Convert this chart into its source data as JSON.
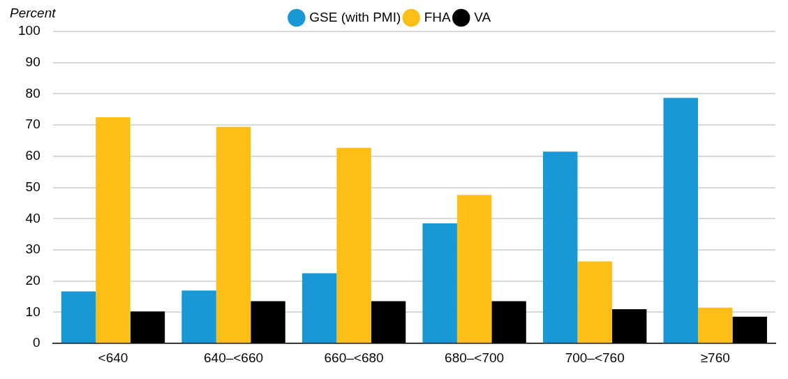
{
  "chart_data": {
    "type": "bar",
    "ylabel": "Percent",
    "categories": [
      "<640",
      "640–<660",
      "660–<680",
      "680–<700",
      "700–<760",
      "≥760"
    ],
    "series": [
      {
        "name": "GSE (with PMI)",
        "color": "#1a98d5",
        "values": [
          16.7,
          17,
          22.5,
          38.5,
          61.5,
          78.7
        ]
      },
      {
        "name": "FHA",
        "color": "#fcbf17",
        "values": [
          72.5,
          69.4,
          62.7,
          47.6,
          26.3,
          11.5
        ]
      },
      {
        "name": "VA",
        "color": "#000000",
        "values": [
          10.3,
          13.6,
          13.6,
          13.6,
          11,
          8.6
        ]
      }
    ],
    "ylim": [
      0,
      100
    ],
    "yticks": [
      0,
      10,
      20,
      30,
      40,
      50,
      60,
      70,
      80,
      90,
      100
    ],
    "grid": "y",
    "legend": "top",
    "marker": "circle"
  }
}
